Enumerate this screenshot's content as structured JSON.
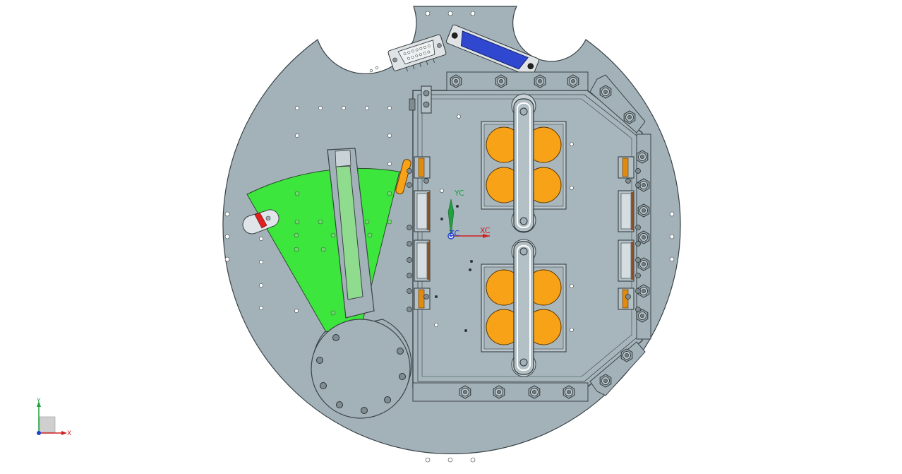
{
  "wcs": {
    "x_label": "XC",
    "y_label": "YC",
    "z_label": "ZC",
    "x_color": "#d02020",
    "y_color": "#20a040",
    "z_color": "#2040d0"
  },
  "triad": {
    "x_label": "X",
    "y_label": "Y",
    "x_color": "#d02020",
    "y_color": "#20a040",
    "z_color": "#2040d0"
  },
  "colors": {
    "background": "#ffffff",
    "plate": "#a3b2b9",
    "plate_edge": "#3a4346",
    "sector": "#3ce63c",
    "slot": "#8fdc8f",
    "pads": "#f8a218",
    "connector_blue": "#3048d0",
    "marker_red": "#e02020",
    "brackets": "#e08a10"
  }
}
